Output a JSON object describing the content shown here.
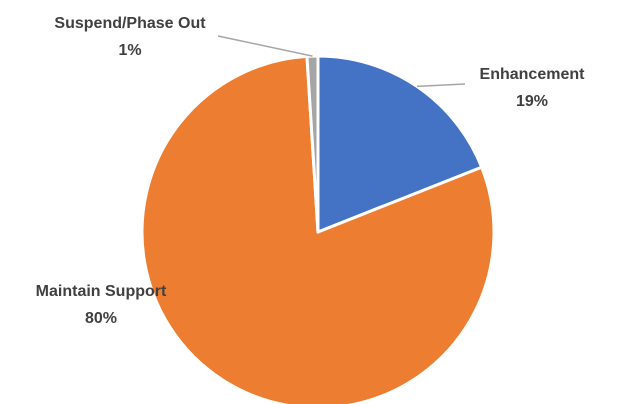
{
  "chart_data": {
    "type": "pie",
    "title": "",
    "start_angle_deg": 0,
    "direction": "clockwise",
    "slices": [
      {
        "label": "Enhancement",
        "value": 19,
        "value_label": "19%",
        "color": "#4472c4"
      },
      {
        "label": "Maintain Support",
        "value": 80,
        "value_label": "80%",
        "color": "#ed7d31"
      },
      {
        "label": "Suspend/Phase Out",
        "value": 1,
        "value_label": "1%",
        "color": "#a5a5a5"
      }
    ],
    "legend": "none",
    "data_labels": "category name and percentage, outside with leader lines"
  }
}
